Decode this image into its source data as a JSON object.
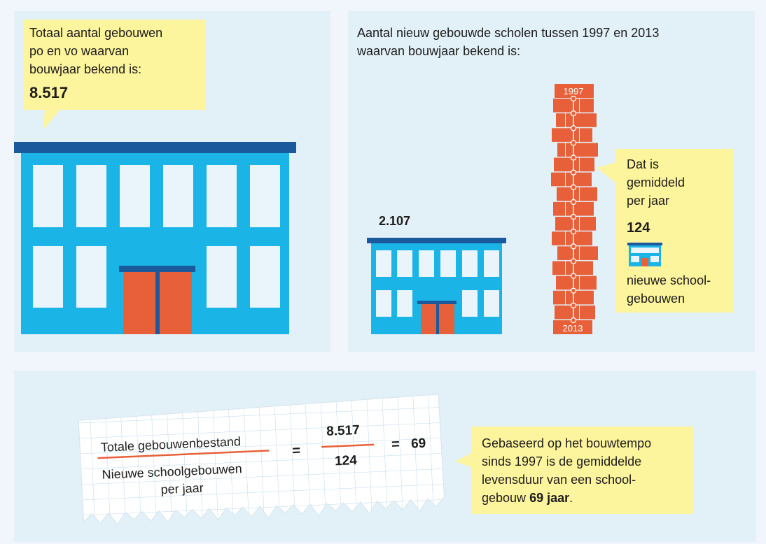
{
  "left_panel": {
    "callout": {
      "lines": [
        "Totaal aantal gebouwen",
        "po en vo waarvan",
        "bouwjaar bekend is:"
      ],
      "value": "8.517"
    }
  },
  "right_panel": {
    "heading_lines": [
      "Aantal nieuw gebouwde scholen tussen 1997 en 2013",
      "waarvan bouwjaar bekend is:"
    ],
    "built_count": "2.107",
    "tower": {
      "start_year": "1997",
      "end_year": "2013"
    },
    "callout": {
      "lines_top": [
        "Dat is",
        "gemiddeld",
        "per jaar"
      ],
      "value": "124",
      "lines_bottom": [
        "nieuwe school-",
        "gebouwen"
      ]
    }
  },
  "bottom_panel": {
    "formula": {
      "numerator_label": "Totale gebouwenbestand",
      "denominator_label_lines": [
        "Nieuwe schoolgebouwen",
        "per jaar"
      ],
      "equals": "=",
      "numerator_value": "8.517",
      "denominator_value": "124",
      "result": "69"
    },
    "callout": {
      "lines": [
        "Gebaseerd op het bouwtempo",
        "sinds 1997 is de gemiddelde",
        "levensduur van een school-"
      ],
      "last_line_start": "gebouw",
      "last_line_bold": "69 jaar",
      "last_line_end": "."
    }
  }
}
